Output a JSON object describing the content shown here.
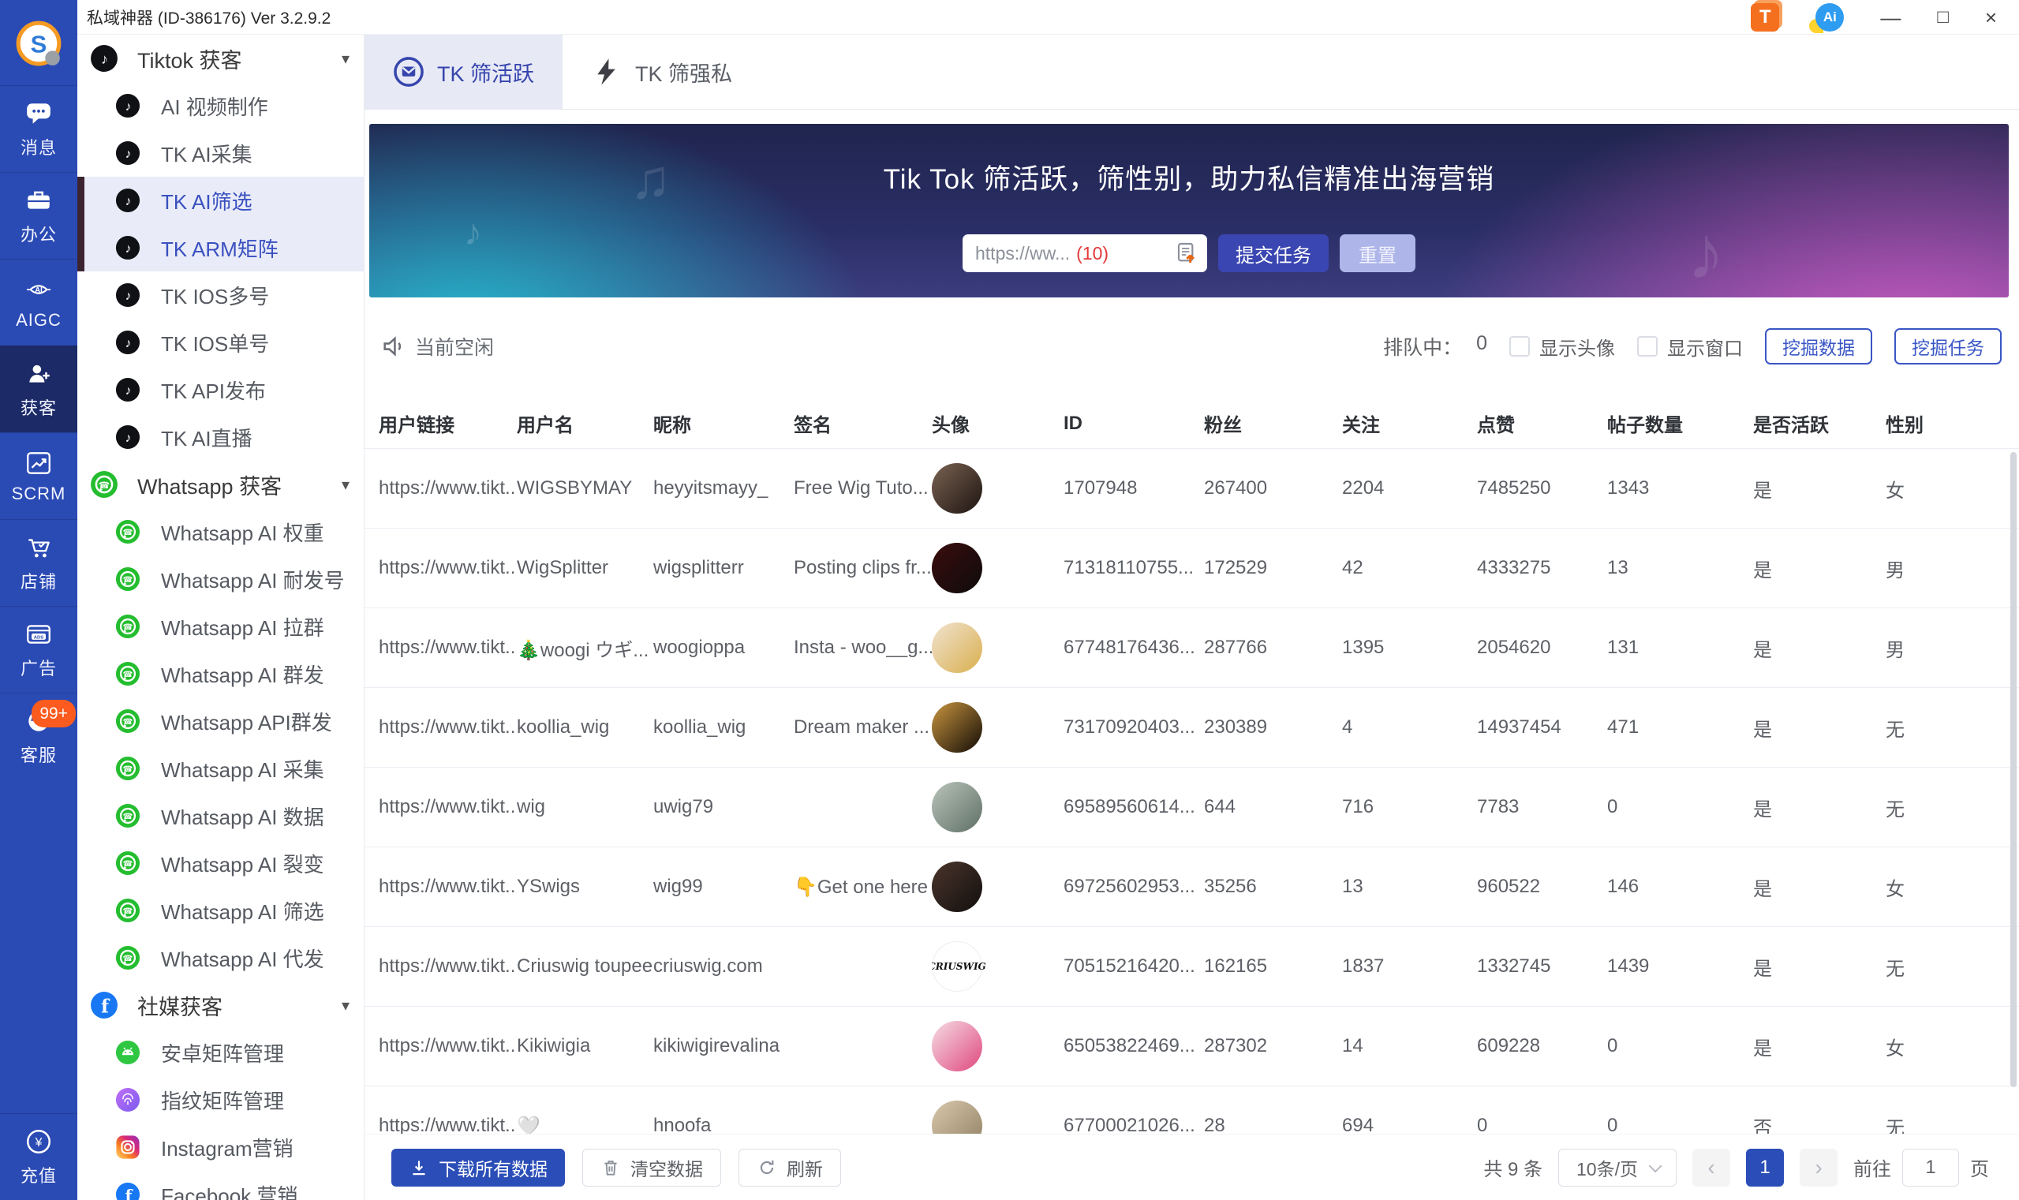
{
  "titlebar": {
    "title": "私域神器  (ID-386176)  Ver 3.2.9.2",
    "minimize": "—",
    "maximize": "□",
    "close": "×"
  },
  "rail": {
    "items": [
      {
        "label": "消息",
        "icon": "chat"
      },
      {
        "label": "办公",
        "icon": "briefcase"
      },
      {
        "label": "AIGC",
        "icon": "aigc"
      },
      {
        "label": "获客",
        "icon": "person",
        "active": true
      },
      {
        "label": "SCRM",
        "icon": "chart"
      },
      {
        "label": "店铺",
        "icon": "cart"
      },
      {
        "label": "广告",
        "icon": "ads"
      },
      {
        "label": "客服",
        "icon": "service",
        "badge": "99+"
      },
      {
        "label": "充值",
        "icon": "recharge",
        "bottom": true
      }
    ]
  },
  "menu": {
    "sections": [
      {
        "label": "Tiktok 获客",
        "icon": "tiktok",
        "caret": "▾",
        "items": [
          {
            "label": "AI 视频制作"
          },
          {
            "label": "TK AI采集"
          },
          {
            "label": "TK AI筛选",
            "selected": true
          },
          {
            "label": "TK ARM矩阵",
            "selected": true
          },
          {
            "label": "TK IOS多号"
          },
          {
            "label": "TK IOS单号"
          },
          {
            "label": "TK API发布"
          },
          {
            "label": "TK AI直播"
          }
        ]
      },
      {
        "label": "Whatsapp 获客",
        "icon": "whatsapp",
        "caret": "▾",
        "items": [
          {
            "label": "Whatsapp AI 权重"
          },
          {
            "label": "Whatsapp AI 耐发号"
          },
          {
            "label": "Whatsapp AI 拉群"
          },
          {
            "label": "Whatsapp AI 群发"
          },
          {
            "label": "Whatsapp API群发"
          },
          {
            "label": "Whatsapp AI 采集"
          },
          {
            "label": "Whatsapp AI 数据"
          },
          {
            "label": "Whatsapp AI 裂变"
          },
          {
            "label": "Whatsapp AI 筛选"
          },
          {
            "label": "Whatsapp AI 代发"
          }
        ]
      },
      {
        "label": "社媒获客",
        "icon": "facebook",
        "caret": "▾",
        "items": [
          {
            "label": "安卓矩阵管理",
            "icon": "android"
          },
          {
            "label": "指纹矩阵管理",
            "icon": "fingerprint"
          },
          {
            "label": "Instagram营销",
            "icon": "instagram"
          },
          {
            "label": "Facebook 营销",
            "icon": "facebook"
          }
        ]
      }
    ]
  },
  "tabs": [
    {
      "label": "TK 筛活跃",
      "icon": "envelope",
      "active": true
    },
    {
      "label": "TK 筛强私",
      "icon": "bolt",
      "active": false
    }
  ],
  "banner": {
    "title": "Tik Tok 筛活跃，筛性别，助力私信精准出海营销",
    "input_placeholder": "https://ww...",
    "input_count": "(10)",
    "submit": "提交任务",
    "reset": "重置"
  },
  "statusbar": {
    "idle": "当前空闲",
    "queue_label": "排队中：",
    "queue_count": "0",
    "checkbox1": "显示头像",
    "checkbox2": "显示窗口",
    "btn1": "挖掘数据",
    "btn2": "挖掘任务"
  },
  "table": {
    "headers": [
      "用户链接",
      "用户名",
      "昵称",
      "签名",
      "头像",
      "ID",
      "粉丝",
      "关注",
      "点赞",
      "帖子数量",
      "是否活跃",
      "性别"
    ],
    "rows": [
      {
        "link": "https://www.tikt...",
        "username": "WIGSBYMAY",
        "nickname": "heyyitsmayy_",
        "signature": "Free Wig Tuto...",
        "avatar": {
          "colors": [
            "#7a6353",
            "#1d1410"
          ]
        },
        "id": "1707948",
        "fans": "267400",
        "follows": "2204",
        "likes": "7485250",
        "posts": "1343",
        "active": "是",
        "gender": "女"
      },
      {
        "link": "https://www.tikt...",
        "username": "WigSplitter",
        "nickname": "wigsplitterr",
        "signature": "Posting clips fr...",
        "avatar": {
          "colors": [
            "#3a0d0d",
            "#0e0b0b"
          ]
        },
        "id": "71318110755...",
        "fans": "172529",
        "follows": "42",
        "likes": "4333275",
        "posts": "13",
        "active": "是",
        "gender": "男"
      },
      {
        "link": "https://www.tikt...",
        "username": "🎄woogi ウギ...",
        "nickname": "woogioppa",
        "signature": "Insta - woo__g...",
        "avatar": {
          "colors": [
            "#f0e2cf",
            "#d9b04e"
          ]
        },
        "id": "67748176436...",
        "fans": "287766",
        "follows": "1395",
        "likes": "2054620",
        "posts": "131",
        "active": "是",
        "gender": "男"
      },
      {
        "link": "https://www.tikt...",
        "username": "koollia_wig",
        "nickname": "koollia_wig",
        "signature": "Dream maker ...",
        "avatar": {
          "colors": [
            "#c9963f",
            "#120b06"
          ]
        },
        "id": "73170920403...",
        "fans": "230389",
        "follows": "4",
        "likes": "14937454",
        "posts": "471",
        "active": "是",
        "gender": "无"
      },
      {
        "link": "https://www.tikt...",
        "username": "wig",
        "nickname": "uwig79",
        "signature": "",
        "avatar": {
          "colors": [
            "#b9c4bb",
            "#5f6f66"
          ]
        },
        "id": "69589560614...",
        "fans": "644",
        "follows": "716",
        "likes": "7783",
        "posts": "0",
        "active": "是",
        "gender": "无"
      },
      {
        "link": "https://www.tikt...",
        "username": "YSwigs",
        "nickname": "wig99",
        "signature": "👇Get one here",
        "avatar": {
          "colors": [
            "#4a352b",
            "#120f0e"
          ]
        },
        "id": "69725602953...",
        "fans": "35256",
        "follows": "13",
        "likes": "960522",
        "posts": "146",
        "active": "是",
        "gender": "女"
      },
      {
        "link": "https://www.tikt...",
        "username": "Criuswig toupee",
        "nickname": "criuswig.com",
        "signature": "",
        "avatar": {
          "text": "CRIUSWIG"
        },
        "id": "70515216420...",
        "fans": "162165",
        "follows": "1837",
        "likes": "1332745",
        "posts": "1439",
        "active": "是",
        "gender": "无"
      },
      {
        "link": "https://www.tikt...",
        "username": "Kikiwigia",
        "nickname": "kikiwigirevalina",
        "signature": "",
        "avatar": {
          "colors": [
            "#f5dde4",
            "#e0487f"
          ]
        },
        "id": "65053822469...",
        "fans": "287302",
        "follows": "14",
        "likes": "609228",
        "posts": "0",
        "active": "是",
        "gender": "女"
      },
      {
        "link": "https://www.tikt...",
        "username": "🤍",
        "nickname": "hnoofa",
        "signature": "",
        "avatar": {
          "colors": [
            "#d9c8ac",
            "#8f7f63"
          ]
        },
        "id": "67700021026...",
        "fans": "28",
        "follows": "694",
        "likes": "0",
        "posts": "0",
        "active": "否",
        "gender": "无"
      }
    ]
  },
  "footer": {
    "download": "下载所有数据",
    "clear": "清空数据",
    "refresh": "刷新",
    "total": "共 9 条",
    "page_size": "10条/页",
    "page": "1",
    "prev": "‹",
    "next": "›",
    "goto_label": "前往",
    "goto_value": "1",
    "goto_suffix": "页"
  }
}
